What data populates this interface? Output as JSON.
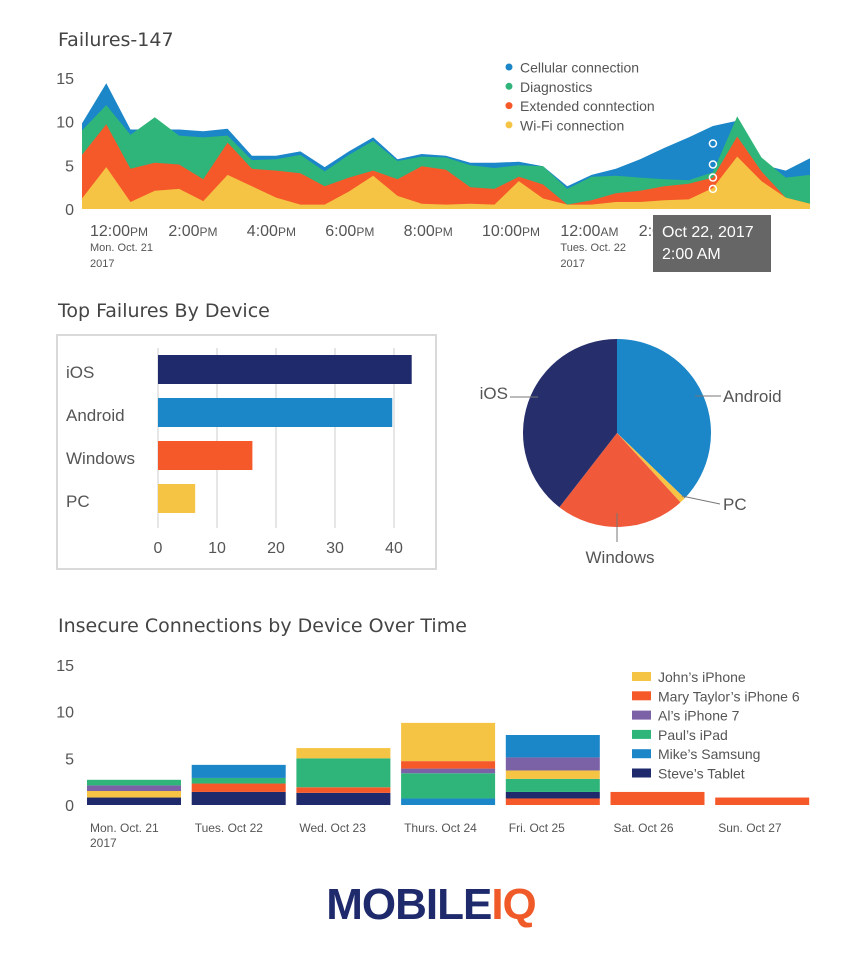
{
  "charts": [
    {
      "type": "area",
      "title": "Failures-147",
      "legend": [
        "Cellular connection",
        "Diagnostics",
        "Extended conntection",
        "Wi-Fi connection"
      ],
      "legend_colors": [
        "#1b86c8",
        "#2fb57a",
        "#f5592a",
        "#f5c445"
      ],
      "ylim": [
        0,
        15
      ],
      "yticks": [
        "0",
        "5",
        "10",
        "15"
      ],
      "xtick_labels": [
        {
          "main": "12:00",
          "ampm": "PM",
          "sub1": "Mon. Oct. 21",
          "sub2": "2017"
        },
        {
          "main": "2:00",
          "ampm": "PM",
          "sub1": "",
          "sub2": ""
        },
        {
          "main": "4:00",
          "ampm": "PM",
          "sub1": "",
          "sub2": ""
        },
        {
          "main": "6:00",
          "ampm": "PM",
          "sub1": "",
          "sub2": ""
        },
        {
          "main": "8:00",
          "ampm": "PM",
          "sub1": "",
          "sub2": ""
        },
        {
          "main": "10:00",
          "ampm": "PM",
          "sub1": "",
          "sub2": ""
        },
        {
          "main": "12:00",
          "ampm": "AM",
          "sub1": "Tues. Oct. 22",
          "sub2": "2017"
        },
        {
          "main": "2:00",
          "ampm": "AM",
          "sub1": "",
          "sub2": ""
        }
      ],
      "tooltip": {
        "line1": "Oct 22, 2017",
        "line2": "2:00 AM",
        "index": 26
      },
      "x_hours": [
        12,
        12.5,
        13,
        13.5,
        14,
        14.5,
        15,
        15.5,
        16,
        16.5,
        17,
        17.5,
        18,
        18.5,
        19,
        19.5,
        20,
        20.5,
        21,
        21.5,
        22,
        22.5,
        23,
        23.5,
        24,
        24.5,
        25,
        25.5,
        26,
        26.5,
        27
      ],
      "totals": {
        "wifi": [
          1.2,
          4.8,
          0.8,
          2.1,
          2.3,
          0.9,
          3.9,
          2.6,
          1.3,
          0.5,
          0.5,
          2.0,
          3.8,
          1.5,
          0.6,
          0.5,
          0.6,
          0.5,
          3.2,
          1.2,
          0.5,
          0.5,
          0.8,
          0.8,
          1.0,
          1.1,
          2.4,
          6.0,
          3.2,
          1.3,
          0.6
        ],
        "extended": [
          6.2,
          9.7,
          4.6,
          5.3,
          5.1,
          3.4,
          7.6,
          4.6,
          4.4,
          4.1,
          2.6,
          3.6,
          4.4,
          3.4,
          4.9,
          4.5,
          2.5,
          2.3,
          3.7,
          2.8,
          0.5,
          1.0,
          1.8,
          2.1,
          2.6,
          2.9,
          3.6,
          8.3,
          4.3,
          1.3,
          0.6
        ],
        "diag": [
          9.0,
          11.9,
          8.5,
          10.5,
          8.4,
          8.2,
          8.4,
          5.6,
          5.7,
          6.2,
          4.3,
          6.2,
          7.8,
          5.5,
          6.0,
          5.9,
          5.0,
          4.7,
          5.0,
          4.9,
          2.3,
          3.7,
          3.8,
          3.6,
          3.4,
          3.3,
          4.2,
          10.6,
          5.9,
          3.6,
          3.9
        ],
        "cellular": [
          9.8,
          14.4,
          9.1,
          9.1,
          9.1,
          8.9,
          9.2,
          6.1,
          6.1,
          6.6,
          4.8,
          6.6,
          8.2,
          5.7,
          6.3,
          6.1,
          5.3,
          5.3,
          5.4,
          4.9,
          2.6,
          3.9,
          4.6,
          5.7,
          7.0,
          8.2,
          9.5,
          10.1,
          5.1,
          4.4,
          5.8
        ]
      },
      "markers": [
        7.5,
        5.1,
        3.6,
        2.3
      ]
    },
    {
      "type": "bar",
      "orientation": "horizontal",
      "title": "Top Failures By Device",
      "categories": [
        "iOS",
        "Android",
        "Windows",
        "PC"
      ],
      "values": [
        43,
        39.7,
        16,
        6.3
      ],
      "colors": [
        "#1e2a6b",
        "#1b86c8",
        "#f5592a",
        "#f5c445"
      ],
      "xlim": [
        0,
        45
      ],
      "xticks": [
        "0",
        "10",
        "20",
        "30",
        "40"
      ]
    },
    {
      "type": "pie",
      "labels": [
        "Android",
        "PC",
        "Windows",
        "iOS"
      ],
      "values": [
        37.2,
        1.0,
        22.3,
        39.5
      ],
      "colors": [
        "#1b86c8",
        "#f5c445",
        "#f05a3a",
        "#262f6b"
      ]
    },
    {
      "type": "bar",
      "stacked": true,
      "title": "Insecure Connections by Device Over Time",
      "categories": [
        {
          "l1": "Mon. Oct. 21",
          "l2": "2017"
        },
        {
          "l1": "Tues. Oct 22",
          "l2": ""
        },
        {
          "l1": "Wed. Oct 23",
          "l2": ""
        },
        {
          "l1": "Thurs. Oct 24",
          "l2": ""
        },
        {
          "l1": "Fri. Oct 25",
          "l2": ""
        },
        {
          "l1": "Sat. Oct 26",
          "l2": ""
        },
        {
          "l1": "Sun. Oct 27",
          "l2": ""
        }
      ],
      "ylim": [
        0,
        15
      ],
      "yticks": [
        "0",
        "5",
        "10",
        "15"
      ],
      "legend": [
        "John’s iPhone",
        "Mary Taylor’s iPhone 6",
        "Al’s iPhone 7",
        "Paul’s iPad",
        "Mike’s Samsung",
        "Steve’s Tablet"
      ],
      "legend_colors": [
        "#f5c445",
        "#f5592a",
        "#7b62a6",
        "#2fb57a",
        "#1b86c8",
        "#1e2a6b"
      ],
      "segments": [
        [
          [
            "#1e2a6b",
            0.8
          ],
          [
            "#f5c445",
            0.7
          ],
          [
            "#7b62a6",
            0.6
          ],
          [
            "#2fb57a",
            0.6
          ]
        ],
        [
          [
            "#1e2a6b",
            1.4
          ],
          [
            "#f5592a",
            0.9
          ],
          [
            "#2fb57a",
            0.6
          ],
          [
            "#1b86c8",
            1.4
          ]
        ],
        [
          [
            "#1e2a6b",
            1.3
          ],
          [
            "#f5592a",
            0.6
          ],
          [
            "#2fb57a",
            3.1
          ],
          [
            "#f5c445",
            1.1
          ]
        ],
        [
          [
            "#1b86c8",
            0.7
          ],
          [
            "#2fb57a",
            2.7
          ],
          [
            "#7b62a6",
            0.5
          ],
          [
            "#f5592a",
            0.8
          ],
          [
            "#f5c445",
            4.1
          ]
        ],
        [
          [
            "#f5592a",
            0.7
          ],
          [
            "#1e2a6b",
            0.7
          ],
          [
            "#2fb57a",
            1.4
          ],
          [
            "#f5c445",
            0.9
          ],
          [
            "#7b62a6",
            1.4
          ],
          [
            "#1b86c8",
            2.4
          ]
        ],
        [
          [
            "#f5592a",
            1.4
          ]
        ],
        [
          [
            "#f5592a",
            0.8
          ]
        ]
      ]
    }
  ],
  "logo": {
    "part1": "MOBILE",
    "part2": "IQ"
  }
}
